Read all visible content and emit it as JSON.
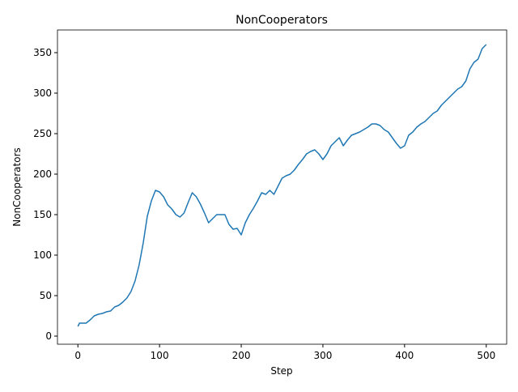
{
  "chart_data": {
    "type": "line",
    "title": "NonCooperators",
    "xlabel": "Step",
    "ylabel": "NonCooperators",
    "x": [
      0,
      2,
      10,
      15,
      20,
      25,
      30,
      35,
      40,
      45,
      50,
      55,
      60,
      65,
      70,
      75,
      80,
      85,
      90,
      95,
      100,
      105,
      110,
      115,
      120,
      125,
      130,
      135,
      140,
      145,
      150,
      155,
      160,
      165,
      170,
      175,
      180,
      185,
      190,
      195,
      200,
      205,
      210,
      215,
      220,
      225,
      230,
      235,
      240,
      245,
      250,
      255,
      260,
      265,
      270,
      275,
      280,
      285,
      290,
      295,
      300,
      305,
      310,
      315,
      320,
      325,
      330,
      335,
      340,
      345,
      350,
      355,
      360,
      365,
      370,
      375,
      380,
      385,
      390,
      395,
      400,
      405,
      410,
      415,
      420,
      425,
      430,
      435,
      440,
      445,
      450,
      455,
      460,
      465,
      470,
      475,
      480,
      485,
      490,
      495,
      500
    ],
    "series": [
      {
        "name": "NonCooperators",
        "color": "#1f77b4",
        "values": [
          12,
          16,
          16,
          20,
          25,
          27,
          28,
          30,
          31,
          36,
          38,
          42,
          47,
          55,
          68,
          88,
          115,
          148,
          167,
          180,
          178,
          172,
          162,
          157,
          150,
          147,
          152,
          165,
          177,
          172,
          163,
          152,
          140,
          145,
          150,
          150,
          150,
          138,
          132,
          133,
          125,
          140,
          150,
          158,
          167,
          177,
          175,
          180,
          175,
          185,
          195,
          198,
          200,
          205,
          212,
          218,
          225,
          228,
          230,
          225,
          218,
          225,
          235,
          240,
          245,
          235,
          242,
          248,
          250,
          252,
          255,
          258,
          262,
          262,
          260,
          255,
          252,
          245,
          238,
          232,
          235,
          248,
          252,
          258,
          262,
          265,
          270,
          275,
          278,
          285,
          290,
          295,
          300,
          305,
          308,
          315,
          330,
          338,
          342,
          355,
          360
        ]
      }
    ],
    "xlim": [
      -25,
      525
    ],
    "ylim": [
      -10,
      378
    ],
    "xticks": [
      0,
      100,
      200,
      300,
      400,
      500
    ],
    "yticks": [
      0,
      50,
      100,
      150,
      200,
      250,
      300,
      350
    ]
  }
}
